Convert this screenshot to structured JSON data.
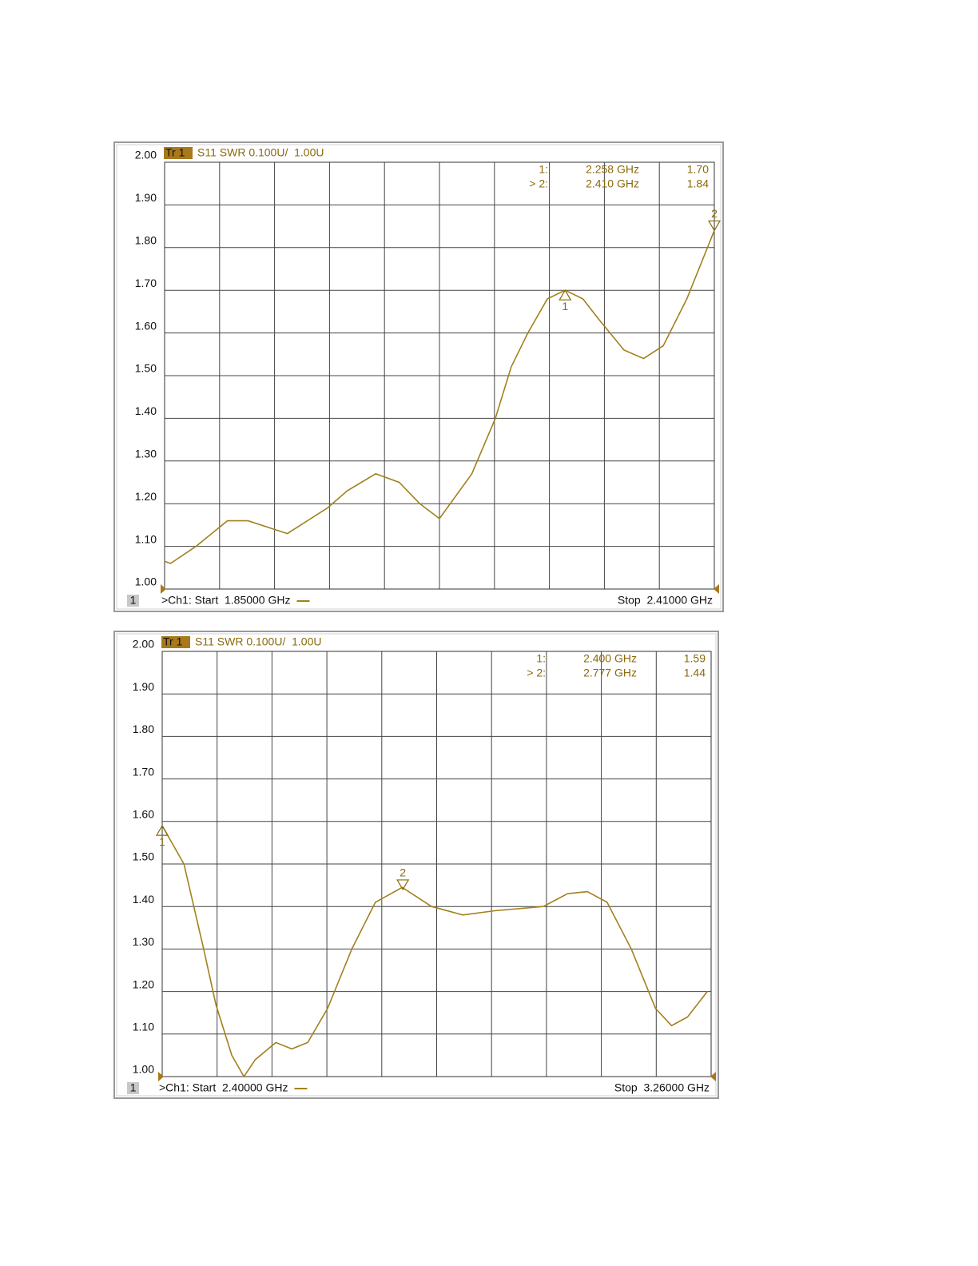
{
  "chart_data": [
    {
      "type": "line",
      "trace_label": "Tr 1",
      "title": "S11 SWR 0.100U/  1.00U",
      "color": "#a3801c",
      "x": [
        1.85,
        1.856,
        1.882,
        1.914,
        1.935,
        1.975,
        2.016,
        2.036,
        2.065,
        2.089,
        2.11,
        2.13,
        2.163,
        2.187,
        2.203,
        2.22,
        2.24,
        2.258,
        2.276,
        2.293,
        2.318,
        2.338,
        2.358,
        2.382,
        2.41
      ],
      "values": [
        1.065,
        1.06,
        1.1,
        1.16,
        1.16,
        1.13,
        1.19,
        1.23,
        1.27,
        1.25,
        1.2,
        1.165,
        1.27,
        1.4,
        1.52,
        1.6,
        1.68,
        1.7,
        1.68,
        1.63,
        1.56,
        1.54,
        1.57,
        1.68,
        1.84
      ],
      "xlim": [
        1.85,
        2.41
      ],
      "xticks": [
        1.85,
        1.906,
        1.962,
        2.018,
        2.074,
        2.13,
        2.186,
        2.242,
        2.298,
        2.354,
        2.41
      ],
      "ylim": [
        1,
        2
      ],
      "yticks": [
        {
          "value": 1,
          "label": "1.00"
        },
        {
          "value": 1.1,
          "label": "1.10"
        },
        {
          "value": 1.2,
          "label": "1.20"
        },
        {
          "value": 1.3,
          "label": "1.30"
        },
        {
          "value": 1.4,
          "label": "1.40"
        },
        {
          "value": 1.5,
          "label": "1.50"
        },
        {
          "value": 1.6,
          "label": "1.60"
        },
        {
          "value": 1.7,
          "label": "1.70"
        },
        {
          "value": 1.8,
          "label": "1.80"
        },
        {
          "value": 1.9,
          "label": "1.90"
        },
        {
          "value": 2,
          "label": "2.00"
        }
      ],
      "grid": true,
      "markers": [
        {
          "id": "1",
          "label": "1:",
          "x": 2.258,
          "x_label": "2.258 GHz",
          "value": 1.7,
          "value_label": "1.70"
        },
        {
          "id": "2",
          "label": "> 2:",
          "x": 2.41,
          "x_label": "2.410 GHz",
          "value": 1.84,
          "value_label": "1.84"
        }
      ],
      "channel_number": "1",
      "start_label": ">Ch1: Start  1.85000 GHz",
      "stop_label": "Stop  2.41000 GHz"
    },
    {
      "type": "line",
      "trace_label": "Tr 1",
      "title": "S11 SWR 0.100U/  1.00U",
      "color": "#a3801c",
      "x": [
        2.4,
        2.434,
        2.465,
        2.484,
        2.509,
        2.528,
        2.546,
        2.578,
        2.603,
        2.628,
        2.659,
        2.697,
        2.734,
        2.776,
        2.822,
        2.871,
        2.921,
        2.997,
        3.035,
        3.066,
        3.097,
        3.135,
        3.173,
        3.198,
        3.223,
        3.254
      ],
      "values": [
        1.59,
        1.5,
        1.3,
        1.17,
        1.05,
        1.0,
        1.04,
        1.08,
        1.065,
        1.08,
        1.16,
        1.3,
        1.41,
        1.445,
        1.4,
        1.38,
        1.39,
        1.4,
        1.43,
        1.435,
        1.41,
        1.3,
        1.16,
        1.12,
        1.14,
        1.2
      ],
      "xlim": [
        2.4,
        3.26
      ],
      "xticks": [
        2.4,
        2.486,
        2.572,
        2.658,
        2.744,
        2.83,
        2.916,
        3.002,
        3.088,
        3.174,
        3.26
      ],
      "ylim": [
        1,
        2
      ],
      "yticks": [
        {
          "value": 1,
          "label": "1.00"
        },
        {
          "value": 1.1,
          "label": "1.10"
        },
        {
          "value": 1.2,
          "label": "1.20"
        },
        {
          "value": 1.3,
          "label": "1.30"
        },
        {
          "value": 1.4,
          "label": "1.40"
        },
        {
          "value": 1.5,
          "label": "1.50"
        },
        {
          "value": 1.6,
          "label": "1.60"
        },
        {
          "value": 1.7,
          "label": "1.70"
        },
        {
          "value": 1.8,
          "label": "1.80"
        },
        {
          "value": 1.9,
          "label": "1.90"
        },
        {
          "value": 2,
          "label": "2.00"
        }
      ],
      "grid": true,
      "markers": [
        {
          "id": "1",
          "label": "1:",
          "x": 2.4,
          "x_label": "2.400 GHz",
          "value": 1.59,
          "value_label": "1.59"
        },
        {
          "id": "2",
          "label": "> 2:",
          "x": 2.777,
          "x_label": "2.777 GHz",
          "value": 1.44,
          "value_label": "1.44"
        }
      ],
      "channel_number": "1",
      "start_label": ">Ch1: Start  2.40000 GHz",
      "stop_label": "Stop  3.26000 GHz"
    }
  ]
}
